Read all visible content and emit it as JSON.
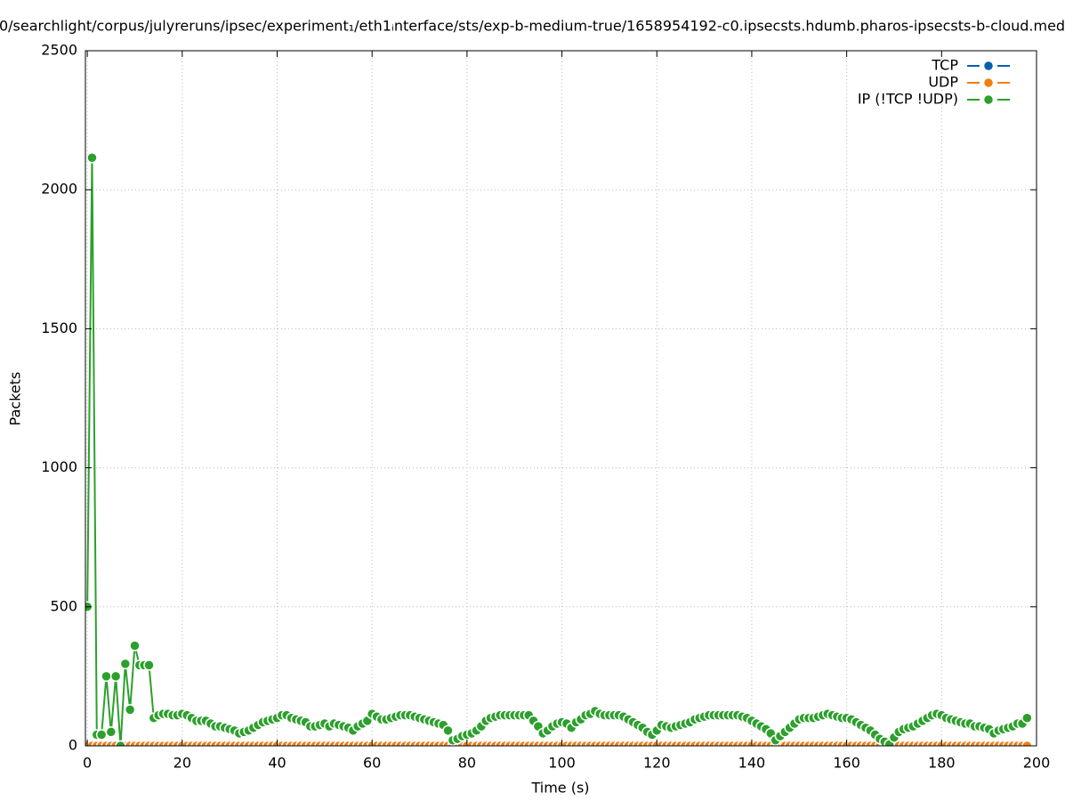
{
  "chart_data": {
    "type": "line",
    "title": "0/searchlight/corpus/julyreruns/ipsec/experiment₁/eth1ᵢnterface/sts/exp-b-medium-true/1658954192-c0.ipsecsts.hdumb.pharos-ipsecsts-b-cloud.med",
    "x_label": "Time (s)",
    "y_label": "Packets",
    "xlim": [
      -0.4,
      200
    ],
    "ylim": [
      0,
      2500
    ],
    "xticks": [
      0,
      20,
      40,
      60,
      80,
      100,
      120,
      140,
      160,
      180,
      200
    ],
    "yticks": [
      0,
      500,
      1000,
      1500,
      2000,
      2500
    ],
    "grid": true,
    "legend": "top right",
    "x": [
      0,
      1,
      2,
      3,
      4,
      5,
      6,
      7,
      8,
      9,
      10,
      11,
      12,
      13,
      14,
      15,
      16,
      17,
      18,
      19,
      20,
      21,
      22,
      23,
      24,
      25,
      26,
      27,
      28,
      29,
      30,
      31,
      32,
      33,
      34,
      35,
      36,
      37,
      38,
      39,
      40,
      41,
      42,
      43,
      44,
      45,
      46,
      47,
      48,
      49,
      50,
      51,
      52,
      53,
      54,
      55,
      56,
      57,
      58,
      59,
      60,
      61,
      62,
      63,
      64,
      65,
      66,
      67,
      68,
      69,
      70,
      71,
      72,
      73,
      74,
      75,
      76,
      77,
      78,
      79,
      80,
      81,
      82,
      83,
      84,
      85,
      86,
      87,
      88,
      89,
      90,
      91,
      92,
      93,
      94,
      95,
      96,
      97,
      98,
      99,
      100,
      101,
      102,
      103,
      104,
      105,
      106,
      107,
      108,
      109,
      110,
      111,
      112,
      113,
      114,
      115,
      116,
      117,
      118,
      119,
      120,
      121,
      122,
      123,
      124,
      125,
      126,
      127,
      128,
      129,
      130,
      131,
      132,
      133,
      134,
      135,
      136,
      137,
      138,
      139,
      140,
      141,
      142,
      143,
      144,
      145,
      146,
      147,
      148,
      149,
      150,
      151,
      152,
      153,
      154,
      155,
      156,
      157,
      158,
      159,
      160,
      161,
      162,
      163,
      164,
      165,
      166,
      167,
      168,
      169,
      170,
      171,
      172,
      173,
      174,
      175,
      176,
      177,
      178,
      179,
      180,
      181,
      182,
      183,
      184,
      185,
      186,
      187,
      188,
      189,
      190,
      191,
      192,
      193,
      194,
      195,
      196,
      197,
      198
    ],
    "series": [
      {
        "name": "TCP",
        "color": "#0060ad",
        "values": [
          0,
          0,
          0,
          0,
          0,
          0,
          0,
          0,
          0,
          0,
          0,
          0,
          0,
          0,
          0,
          0,
          0,
          0,
          0,
          0,
          0,
          0,
          0,
          0,
          0,
          0,
          0,
          0,
          0,
          0,
          0,
          0,
          0,
          0,
          0,
          0,
          0,
          0,
          0,
          0,
          0,
          0,
          0,
          0,
          0,
          0,
          0,
          0,
          0,
          0,
          0,
          0,
          0,
          0,
          0,
          0,
          0,
          0,
          0,
          0,
          0,
          0,
          0,
          0,
          0,
          0,
          0,
          0,
          0,
          0,
          0,
          0,
          0,
          0,
          0,
          0,
          0,
          0,
          0,
          0,
          0,
          0,
          0,
          0,
          0,
          0,
          0,
          0,
          0,
          0,
          0,
          0,
          0,
          0,
          0,
          0,
          0,
          0,
          0,
          0,
          0,
          0,
          0,
          0,
          0,
          0,
          0,
          0,
          0,
          0,
          0,
          0,
          0,
          0,
          0,
          0,
          0,
          0,
          0,
          0,
          0,
          0,
          0,
          0,
          0,
          0,
          0,
          0,
          0,
          0,
          0,
          0,
          0,
          0,
          0,
          0,
          0,
          0,
          0,
          0,
          0,
          0,
          0,
          0,
          0,
          0,
          0,
          0,
          0,
          0,
          0,
          0,
          0,
          0,
          0,
          0,
          0,
          0,
          0,
          0,
          0,
          0,
          0,
          0,
          0,
          0,
          0,
          0,
          0,
          0,
          0,
          0,
          0,
          0,
          0,
          0,
          0,
          0,
          0,
          0,
          0,
          0,
          0,
          0,
          0,
          0,
          0,
          0,
          0,
          0,
          0,
          0,
          0,
          0,
          0,
          0,
          0,
          0,
          0
        ]
      },
      {
        "name": "UDP",
        "color": "#f07f14",
        "values": [
          0,
          0,
          0,
          0,
          0,
          0,
          0,
          0,
          0,
          0,
          0,
          0,
          0,
          0,
          0,
          0,
          0,
          0,
          0,
          0,
          0,
          0,
          0,
          0,
          0,
          0,
          0,
          0,
          0,
          0,
          0,
          0,
          0,
          0,
          0,
          0,
          0,
          0,
          0,
          0,
          0,
          0,
          0,
          0,
          0,
          0,
          0,
          0,
          0,
          0,
          0,
          0,
          0,
          0,
          0,
          0,
          0,
          0,
          0,
          0,
          0,
          0,
          0,
          0,
          0,
          0,
          0,
          0,
          0,
          0,
          0,
          0,
          0,
          0,
          0,
          0,
          0,
          0,
          0,
          0,
          0,
          0,
          0,
          0,
          0,
          0,
          0,
          0,
          0,
          0,
          0,
          0,
          0,
          0,
          0,
          0,
          0,
          0,
          0,
          0,
          0,
          0,
          0,
          0,
          0,
          0,
          0,
          0,
          0,
          0,
          0,
          0,
          0,
          0,
          0,
          0,
          0,
          0,
          0,
          0,
          0,
          0,
          0,
          0,
          0,
          0,
          0,
          0,
          0,
          0,
          0,
          0,
          0,
          0,
          0,
          0,
          0,
          0,
          0,
          0,
          0,
          0,
          0,
          0,
          0,
          0,
          0,
          0,
          0,
          0,
          0,
          0,
          0,
          0,
          0,
          0,
          0,
          0,
          0,
          0,
          0,
          0,
          0,
          0,
          0,
          0,
          0,
          0,
          0,
          0,
          0,
          0,
          0,
          0,
          0,
          0,
          0,
          0,
          0,
          0,
          0,
          0,
          0,
          0,
          0,
          0,
          0,
          0,
          0,
          0,
          0,
          0,
          0,
          0,
          0,
          0,
          0,
          0,
          0
        ]
      },
      {
        "name": "IP (!TCP  !UDP)",
        "color": "#2ca02c",
        "values": [
          500,
          2115,
          40,
          40,
          250,
          50,
          250,
          0,
          295,
          130,
          360,
          290,
          290,
          290,
          100,
          110,
          115,
          115,
          110,
          110,
          115,
          110,
          100,
          90,
          90,
          90,
          80,
          70,
          70,
          65,
          60,
          55,
          45,
          50,
          55,
          65,
          75,
          85,
          90,
          95,
          100,
          110,
          110,
          100,
          95,
          90,
          85,
          70,
          70,
          75,
          80,
          70,
          80,
          75,
          70,
          65,
          55,
          70,
          80,
          90,
          115,
          105,
          95,
          95,
          100,
          105,
          110,
          110,
          110,
          105,
          100,
          95,
          90,
          85,
          80,
          75,
          55,
          20,
          25,
          35,
          40,
          45,
          55,
          70,
          90,
          100,
          105,
          110,
          110,
          110,
          110,
          110,
          110,
          110,
          90,
          70,
          45,
          55,
          70,
          80,
          85,
          80,
          65,
          85,
          95,
          110,
          115,
          125,
          115,
          110,
          110,
          110,
          110,
          105,
          95,
          85,
          75,
          65,
          50,
          40,
          55,
          75,
          70,
          65,
          70,
          75,
          80,
          85,
          95,
          100,
          105,
          110,
          110,
          110,
          110,
          110,
          110,
          110,
          105,
          100,
          90,
          80,
          70,
          60,
          45,
          20,
          35,
          50,
          65,
          80,
          95,
          100,
          100,
          100,
          105,
          110,
          115,
          110,
          105,
          100,
          100,
          95,
          85,
          75,
          65,
          55,
          40,
          25,
          15,
          5,
          30,
          50,
          60,
          65,
          70,
          80,
          90,
          100,
          110,
          115,
          110,
          100,
          95,
          90,
          85,
          80,
          80,
          70,
          70,
          65,
          60,
          45,
          55,
          60,
          65,
          70,
          80,
          80,
          100
        ]
      }
    ]
  }
}
